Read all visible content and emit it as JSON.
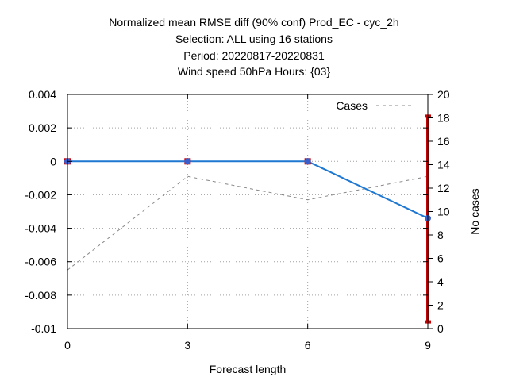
{
  "chart_data": {
    "type": "line",
    "title_lines": [
      "Normalized mean RMSE diff (90% conf) Prod_EC - cyc_2h",
      "Selection: ALL using    16 stations",
      "Period: 20220817-20220831",
      "Wind speed 50hPa   Hours: {03}"
    ],
    "xlabel": "Forecast length",
    "ylabel": "",
    "y2label": "No cases",
    "x_ticks": [
      0,
      3,
      6,
      9
    ],
    "y_ticks": [
      0.004,
      0.002,
      0,
      -0.002,
      -0.004,
      -0.006,
      -0.008,
      -0.01
    ],
    "y_tick_labels": [
      "0.004",
      "0.002",
      "0",
      "-0.002",
      "-0.004",
      "-0.006",
      "-0.008",
      "-0.01"
    ],
    "y2_ticks": [
      20,
      18,
      16,
      14,
      12,
      10,
      8,
      6,
      4,
      2,
      0
    ],
    "xlim": [
      0,
      9
    ],
    "ylim": [
      -0.01,
      0.004
    ],
    "y2lim": [
      0,
      20
    ],
    "grid": true,
    "legend_position": "top-right",
    "series": [
      {
        "values": [
          0,
          0,
          0,
          -0.0034
        ],
        "x": [
          0,
          3,
          6,
          9
        ],
        "color": "#1e78d2",
        "marker_color": "#3a5fcd",
        "axis": "left"
      },
      {
        "name": "Cases",
        "x": [
          0,
          3,
          6,
          9
        ],
        "values": [
          5,
          13,
          11,
          13
        ],
        "color": "#888888",
        "dashed": true,
        "axis": "right"
      }
    ],
    "error_bars": [
      {
        "x": 0,
        "low": 0,
        "high": 0,
        "color": "#cc0000"
      },
      {
        "x": 3,
        "low": 0,
        "high": 0,
        "color": "#cc0000"
      },
      {
        "x": 6,
        "low": 0,
        "high": 0,
        "color": "#cc0000"
      },
      {
        "x": 9,
        "low": -0.0096,
        "high": 0.0027,
        "color": "#cc0000"
      }
    ]
  }
}
